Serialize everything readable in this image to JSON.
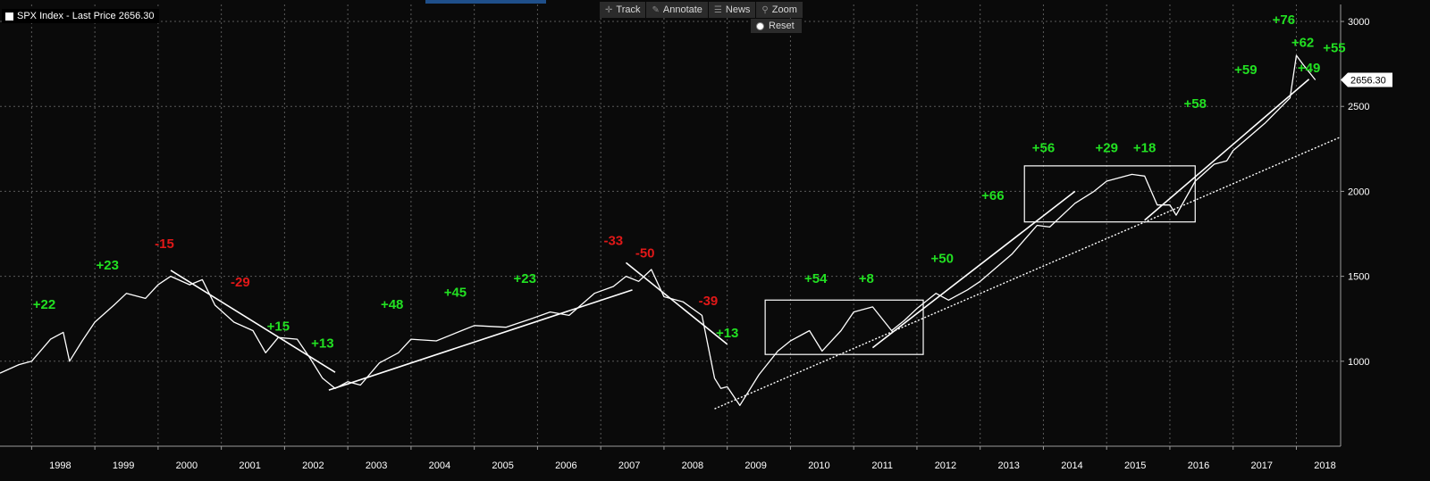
{
  "legend": {
    "label": "SPX Index - Last Price 2656.30"
  },
  "toolbar": {
    "items": [
      {
        "label": "Track",
        "icon": "crosshair-icon"
      },
      {
        "label": "Annotate",
        "icon": "pencil-icon"
      },
      {
        "label": "News",
        "icon": "news-icon"
      },
      {
        "label": "Zoom",
        "icon": "magnifier-icon"
      }
    ],
    "reset_label": "Reset"
  },
  "colors": {
    "background": "#0a0a0a",
    "grid": "#5a5a5a",
    "price": "#ffffff",
    "positive": "#22e022",
    "negative": "#e01818"
  },
  "chart_data": {
    "type": "line",
    "title": "SPX Index - Last Price 2656.30",
    "x_axis": {
      "range": [
        1997.5,
        2018.7
      ],
      "tick_labels": [
        "1998",
        "1999",
        "2000",
        "2001",
        "2002",
        "2003",
        "2004",
        "2005",
        "2006",
        "2007",
        "2008",
        "2009",
        "2010",
        "2011",
        "2012",
        "2013",
        "2014",
        "2015",
        "2016",
        "2017",
        "2018"
      ]
    },
    "y_axis": {
      "range": [
        500,
        3100
      ],
      "tick_labels": [
        "1000",
        "1500",
        "2000",
        "2500",
        "3000"
      ],
      "position": "right"
    },
    "grid": true,
    "last_price": {
      "value": 2656.3,
      "label": "2656.30"
    },
    "series": [
      {
        "name": "SPX Index",
        "x": [
          1997.5,
          1997.8,
          1998.0,
          1998.3,
          1998.5,
          1998.6,
          1998.8,
          1999.0,
          1999.3,
          1999.5,
          1999.8,
          2000.0,
          2000.2,
          2000.5,
          2000.7,
          2000.9,
          2001.2,
          2001.5,
          2001.7,
          2001.9,
          2002.2,
          2002.4,
          2002.6,
          2002.8,
          2003.0,
          2003.2,
          2003.5,
          2003.8,
          2004.0,
          2004.4,
          2004.8,
          2005.0,
          2005.5,
          2005.9,
          2006.2,
          2006.5,
          2006.9,
          2007.2,
          2007.4,
          2007.6,
          2007.8,
          2008.0,
          2008.3,
          2008.6,
          2008.8,
          2008.9,
          2009.0,
          2009.2,
          2009.5,
          2009.8,
          2010.0,
          2010.3,
          2010.5,
          2010.8,
          2011.0,
          2011.3,
          2011.6,
          2011.8,
          2012.0,
          2012.3,
          2012.5,
          2012.8,
          2013.0,
          2013.5,
          2013.9,
          2014.1,
          2014.5,
          2014.8,
          2015.0,
          2015.4,
          2015.6,
          2015.8,
          2016.0,
          2016.1,
          2016.4,
          2016.7,
          2016.9,
          2017.0,
          2017.5,
          2017.9,
          2018.0,
          2018.1,
          2018.3
        ],
        "y": [
          930,
          980,
          1000,
          1130,
          1170,
          1000,
          1120,
          1230,
          1330,
          1400,
          1370,
          1450,
          1500,
          1450,
          1480,
          1330,
          1230,
          1180,
          1050,
          1140,
          1130,
          1020,
          900,
          840,
          880,
          860,
          990,
          1050,
          1130,
          1120,
          1180,
          1210,
          1200,
          1250,
          1290,
          1270,
          1400,
          1440,
          1500,
          1470,
          1540,
          1380,
          1350,
          1270,
          900,
          840,
          850,
          740,
          920,
          1060,
          1120,
          1180,
          1060,
          1180,
          1290,
          1320,
          1180,
          1240,
          1310,
          1400,
          1360,
          1420,
          1470,
          1630,
          1800,
          1790,
          1930,
          2000,
          2060,
          2100,
          2090,
          1920,
          1920,
          1860,
          2060,
          2160,
          2180,
          2240,
          2400,
          2550,
          2800,
          2750,
          2656
        ]
      }
    ],
    "annotations": [
      {
        "text": "+22",
        "x": 1998.2,
        "y": 1310,
        "sign": "positive"
      },
      {
        "text": "+23",
        "x": 1999.2,
        "y": 1540,
        "sign": "positive"
      },
      {
        "text": "-15",
        "x": 2000.1,
        "y": 1665,
        "sign": "negative"
      },
      {
        "text": "-29",
        "x": 2001.3,
        "y": 1440,
        "sign": "negative"
      },
      {
        "text": "+15",
        "x": 2001.9,
        "y": 1180,
        "sign": "positive"
      },
      {
        "text": "+13",
        "x": 2002.6,
        "y": 1080,
        "sign": "positive"
      },
      {
        "text": "+48",
        "x": 2003.7,
        "y": 1310,
        "sign": "positive"
      },
      {
        "text": "+45",
        "x": 2004.7,
        "y": 1380,
        "sign": "positive"
      },
      {
        "text": "+23",
        "x": 2005.8,
        "y": 1460,
        "sign": "positive"
      },
      {
        "text": "-33",
        "x": 2007.2,
        "y": 1685,
        "sign": "negative"
      },
      {
        "text": "-50",
        "x": 2007.7,
        "y": 1610,
        "sign": "negative"
      },
      {
        "text": "-39",
        "x": 2008.7,
        "y": 1330,
        "sign": "negative"
      },
      {
        "text": "+13",
        "x": 2009.0,
        "y": 1140,
        "sign": "positive"
      },
      {
        "text": "+54",
        "x": 2010.4,
        "y": 1460,
        "sign": "positive"
      },
      {
        "text": "+8",
        "x": 2011.2,
        "y": 1460,
        "sign": "positive"
      },
      {
        "text": "+50",
        "x": 2012.4,
        "y": 1580,
        "sign": "positive"
      },
      {
        "text": "+66",
        "x": 2013.2,
        "y": 1950,
        "sign": "positive"
      },
      {
        "text": "+56",
        "x": 2014.0,
        "y": 2230,
        "sign": "positive"
      },
      {
        "text": "+29",
        "x": 2015.0,
        "y": 2230,
        "sign": "positive"
      },
      {
        "text": "+18",
        "x": 2015.6,
        "y": 2230,
        "sign": "positive"
      },
      {
        "text": "+58",
        "x": 2016.4,
        "y": 2490,
        "sign": "positive"
      },
      {
        "text": "+59",
        "x": 2017.2,
        "y": 2690,
        "sign": "positive"
      },
      {
        "text": "+76",
        "x": 2017.8,
        "y": 2985,
        "sign": "positive"
      },
      {
        "text": "+62",
        "x": 2018.1,
        "y": 2850,
        "sign": "positive"
      },
      {
        "text": "+49",
        "x": 2018.2,
        "y": 2700,
        "sign": "positive"
      },
      {
        "text": "+55",
        "x": 2018.6,
        "y": 2820,
        "sign": "positive"
      }
    ],
    "trendlines": [
      {
        "style": "solid",
        "x": [
          2000.2,
          2002.8
        ],
        "y": [
          1535,
          935
        ]
      },
      {
        "style": "solid",
        "x": [
          2002.7,
          2007.5
        ],
        "y": [
          830,
          1420
        ]
      },
      {
        "style": "solid",
        "x": [
          2007.4,
          2009.0
        ],
        "y": [
          1580,
          1100
        ]
      },
      {
        "style": "solid",
        "x": [
          2011.3,
          2014.5
        ],
        "y": [
          1080,
          2000
        ]
      },
      {
        "style": "solid",
        "x": [
          2015.6,
          2018.2
        ],
        "y": [
          1830,
          2660
        ]
      },
      {
        "style": "dotted",
        "x": [
          2008.8,
          2018.7
        ],
        "y": [
          720,
          2320
        ]
      }
    ],
    "boxes": [
      {
        "x": [
          2009.6,
          2012.1
        ],
        "y": [
          1040,
          1360
        ]
      },
      {
        "x": [
          2013.7,
          2016.4
        ],
        "y": [
          1820,
          2150
        ]
      }
    ]
  }
}
